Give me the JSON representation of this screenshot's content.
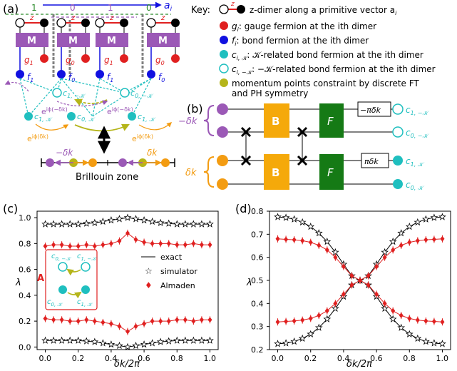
{
  "labels": {
    "panel_a": "(a)",
    "panel_b": "(b)",
    "panel_c": "(c)",
    "panel_d": "(d)",
    "top_bits": [
      "1",
      "0",
      "1",
      "0"
    ],
    "ai_arrow": "a",
    "ai_sub": "i",
    "z": "z",
    "M": "M",
    "g1": "g",
    "g1_sub": "1",
    "g0": "g",
    "g0_sub": "0",
    "f1": "f",
    "f1_sub": "1",
    "f0": "f",
    "f0_sub": "0",
    "c1mk": "c",
    "c1mk_sub": "1, −𝒦",
    "c0mk": "c",
    "c0mk_sub": "0, −𝒦",
    "c1k": "c",
    "c1k_sub": "1, 𝒦",
    "c0k": "c",
    "c0k_sub": "0, 𝒦",
    "phase_neg": "e",
    "phase_neg_sup": "iϕ(−δk)",
    "phase_pos": "e",
    "phase_pos_sup": "iϕ(δk)",
    "dk_neg": "−δk",
    "dk_pos": "δk",
    "brillouin": "Brillouin zone"
  },
  "key": {
    "title": "Key:",
    "items": [
      "z-dimer along a primitive vector a",
      ": gauge fermion at the ith dimer",
      ": bond fermion at the ith dimer",
      ": 𝒦-related bond fermion at the ith dimer",
      ": −𝒦-related bond fermion at the ith dimer",
      "momentum points constraint by discrete FT",
      "and PH symmetry"
    ],
    "sym_g": "g",
    "sym_f": "f",
    "sym_c": "c",
    "sym_ck": "i, 𝒦",
    "sym_cmk": "i, −𝒦",
    "sym_i": "i"
  },
  "circuit": {
    "B": "B",
    "F": "F",
    "pdk": "πδk",
    "mpdk": "−πδk",
    "left_top": "−δk",
    "left_bottom": "δk",
    "out1": "c",
    "out1_sub": "1, −𝒦",
    "out2": "c",
    "out2_sub": "0, −𝒦",
    "out3": "c",
    "out3_sub": "1, 𝒦",
    "out4": "c",
    "out4_sub": "0, 𝒦"
  },
  "colors": {
    "purple": "#9b59b6",
    "orange": "#f39c12",
    "red": "#e02020",
    "blue": "#1010e0",
    "cyan": "#1fbfbf",
    "olive": "#b5b51a",
    "green": "#157a15",
    "gray": "#808080"
  },
  "chart_data": [
    {
      "type": "line",
      "panel": "(c)",
      "xlabel": "δk/2π",
      "ylabel": "λ",
      "xlim": [
        -0.05,
        1.05
      ],
      "ylim": [
        -0.02,
        1.05
      ],
      "xticks": [
        "0.0",
        "0.2",
        "0.4",
        "0.6",
        "0.8",
        "1.0"
      ],
      "yticks": [
        "0.0",
        "0.2",
        "0.4",
        "0.6",
        "0.8",
        "1.0"
      ],
      "legend": [
        "exact",
        "simulator",
        "Almaden"
      ],
      "inset_labels": {
        "c0mk": "c",
        "c0mk_sub": "0, −𝒦",
        "c1mk": "c",
        "c1mk_sub": "1, −𝒦",
        "c0k": "c",
        "c0k_sub": "0, 𝒦",
        "c1k": "c",
        "c1k_sub": "1, 𝒦",
        "A": "A"
      },
      "x": [
        0.0,
        0.05,
        0.1,
        0.15,
        0.2,
        0.25,
        0.3,
        0.35,
        0.4,
        0.45,
        0.5,
        0.55,
        0.6,
        0.65,
        0.7,
        0.75,
        0.8,
        0.85,
        0.9,
        0.95,
        1.0
      ],
      "series": [
        {
          "name": "exact",
          "values": [
            0.95,
            0.95,
            0.95,
            0.95,
            0.95,
            0.955,
            0.96,
            0.97,
            0.98,
            0.99,
            1.0,
            0.99,
            0.98,
            0.97,
            0.96,
            0.955,
            0.95,
            0.95,
            0.95,
            0.95,
            0.95
          ]
        },
        {
          "name": "exact",
          "values": [
            0.05,
            0.05,
            0.05,
            0.05,
            0.05,
            0.045,
            0.04,
            0.03,
            0.02,
            0.01,
            0.0,
            0.01,
            0.02,
            0.03,
            0.04,
            0.045,
            0.05,
            0.05,
            0.05,
            0.05,
            0.05
          ]
        },
        {
          "name": "simulator",
          "values": [
            0.95,
            0.95,
            0.95,
            0.95,
            0.95,
            0.955,
            0.96,
            0.97,
            0.98,
            0.99,
            1.0,
            0.99,
            0.98,
            0.97,
            0.96,
            0.955,
            0.95,
            0.95,
            0.95,
            0.95,
            0.95
          ]
        },
        {
          "name": "simulator",
          "values": [
            0.05,
            0.05,
            0.05,
            0.05,
            0.05,
            0.045,
            0.04,
            0.03,
            0.02,
            0.01,
            0.0,
            0.01,
            0.02,
            0.03,
            0.04,
            0.045,
            0.05,
            0.05,
            0.05,
            0.05,
            0.05
          ]
        },
        {
          "name": "Almaden",
          "values": [
            0.78,
            0.79,
            0.79,
            0.78,
            0.78,
            0.79,
            0.78,
            0.79,
            0.8,
            0.82,
            0.88,
            0.83,
            0.81,
            0.8,
            0.8,
            0.8,
            0.79,
            0.79,
            0.8,
            0.79,
            0.79
          ]
        },
        {
          "name": "Almaden",
          "values": [
            0.22,
            0.21,
            0.21,
            0.2,
            0.2,
            0.21,
            0.2,
            0.19,
            0.18,
            0.16,
            0.12,
            0.16,
            0.18,
            0.2,
            0.2,
            0.2,
            0.21,
            0.21,
            0.2,
            0.21,
            0.21
          ]
        }
      ]
    },
    {
      "type": "line",
      "panel": "(d)",
      "xlabel": "δk/2π",
      "ylabel": "λ",
      "xlim": [
        -0.05,
        1.05
      ],
      "ylim": [
        0.2,
        0.8
      ],
      "xticks": [
        "0.0",
        "0.2",
        "0.4",
        "0.6",
        "0.8",
        "1.0"
      ],
      "yticks": [
        "0.2",
        "0.3",
        "0.4",
        "0.5",
        "0.6",
        "0.7",
        "0.8"
      ],
      "x": [
        0.0,
        0.05,
        0.1,
        0.15,
        0.2,
        0.25,
        0.3,
        0.35,
        0.4,
        0.45,
        0.5,
        0.55,
        0.6,
        0.65,
        0.7,
        0.75,
        0.8,
        0.85,
        0.9,
        0.95,
        1.0
      ],
      "series": [
        {
          "name": "exact",
          "values": [
            0.775,
            0.772,
            0.765,
            0.752,
            0.733,
            0.705,
            0.668,
            0.622,
            0.57,
            0.52,
            0.5,
            0.48,
            0.43,
            0.378,
            0.332,
            0.295,
            0.267,
            0.248,
            0.235,
            0.228,
            0.225
          ]
        },
        {
          "name": "exact",
          "values": [
            0.225,
            0.228,
            0.235,
            0.248,
            0.267,
            0.295,
            0.332,
            0.378,
            0.43,
            0.48,
            0.5,
            0.52,
            0.57,
            0.622,
            0.668,
            0.705,
            0.733,
            0.752,
            0.765,
            0.772,
            0.775
          ]
        },
        {
          "name": "simulator",
          "values": [
            0.775,
            0.772,
            0.765,
            0.752,
            0.733,
            0.705,
            0.668,
            0.622,
            0.57,
            0.52,
            0.5,
            0.48,
            0.43,
            0.378,
            0.332,
            0.295,
            0.267,
            0.248,
            0.235,
            0.228,
            0.225
          ]
        },
        {
          "name": "simulator",
          "values": [
            0.225,
            0.228,
            0.235,
            0.248,
            0.267,
            0.295,
            0.332,
            0.378,
            0.43,
            0.48,
            0.5,
            0.52,
            0.57,
            0.622,
            0.668,
            0.705,
            0.733,
            0.752,
            0.765,
            0.772,
            0.775
          ]
        },
        {
          "name": "Almaden",
          "values": [
            0.68,
            0.678,
            0.676,
            0.672,
            0.665,
            0.652,
            0.632,
            0.6,
            0.56,
            0.52,
            0.5,
            0.48,
            0.44,
            0.4,
            0.368,
            0.348,
            0.335,
            0.328,
            0.324,
            0.322,
            0.32
          ]
        },
        {
          "name": "Almaden",
          "values": [
            0.32,
            0.322,
            0.324,
            0.328,
            0.335,
            0.348,
            0.368,
            0.4,
            0.44,
            0.48,
            0.5,
            0.52,
            0.56,
            0.6,
            0.632,
            0.652,
            0.665,
            0.672,
            0.676,
            0.678,
            0.68
          ]
        }
      ]
    }
  ]
}
